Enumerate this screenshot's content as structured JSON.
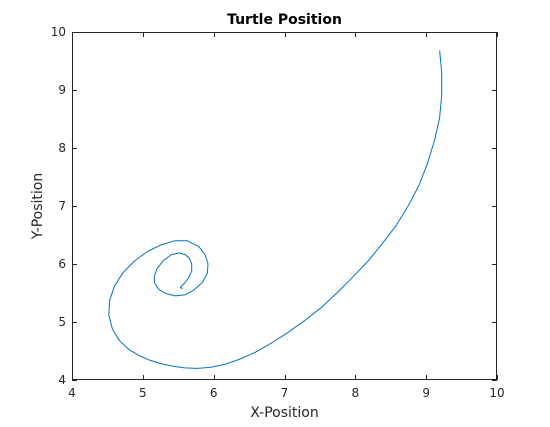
{
  "chart_data": {
    "type": "line",
    "title": "Turtle Position",
    "xlabel": "X-Position",
    "ylabel": "Y-Position",
    "xlim": [
      4,
      10
    ],
    "ylim": [
      4,
      10
    ],
    "xticks": [
      "4",
      "5",
      "6",
      "7",
      "8",
      "9",
      "10"
    ],
    "yticks": [
      "4",
      "5",
      "6",
      "7",
      "8",
      "9",
      "10"
    ],
    "grid": false,
    "line_color": "#0072BD",
    "series": [
      {
        "x": [
          9.19,
          9.22,
          9.22,
          9.19,
          9.12,
          9.02,
          8.9,
          8.75,
          8.58,
          8.38,
          8.18,
          7.96,
          7.74,
          7.51,
          7.28,
          7.05,
          6.82,
          6.59,
          6.37,
          6.16,
          5.96,
          5.77,
          5.59,
          5.42,
          5.26,
          5.1,
          4.95,
          4.8,
          4.67,
          4.57,
          4.52,
          4.53,
          4.6,
          4.72,
          4.88,
          5.07,
          5.26,
          5.45,
          5.63,
          5.79,
          5.88,
          5.92,
          5.91,
          5.84,
          5.73,
          5.6,
          5.46,
          5.33,
          5.23,
          5.17,
          5.16,
          5.2,
          5.29,
          5.4,
          5.51,
          5.6,
          5.66,
          5.69,
          5.69,
          5.65,
          5.59,
          5.53,
          5.56
        ],
        "y": [
          9.68,
          9.3,
          8.92,
          8.52,
          8.14,
          7.74,
          7.36,
          7.01,
          6.67,
          6.35,
          6.05,
          5.77,
          5.5,
          5.24,
          5.02,
          4.82,
          4.64,
          4.48,
          4.36,
          4.27,
          4.22,
          4.2,
          4.21,
          4.24,
          4.28,
          4.34,
          4.42,
          4.53,
          4.68,
          4.88,
          5.12,
          5.37,
          5.62,
          5.85,
          6.05,
          6.22,
          6.33,
          6.4,
          6.4,
          6.3,
          6.16,
          6.0,
          5.84,
          5.68,
          5.56,
          5.47,
          5.45,
          5.49,
          5.56,
          5.66,
          5.78,
          5.92,
          6.06,
          6.16,
          6.19,
          6.16,
          6.09,
          6.0,
          5.88,
          5.77,
          5.67,
          5.6,
          5.57
        ]
      }
    ]
  }
}
